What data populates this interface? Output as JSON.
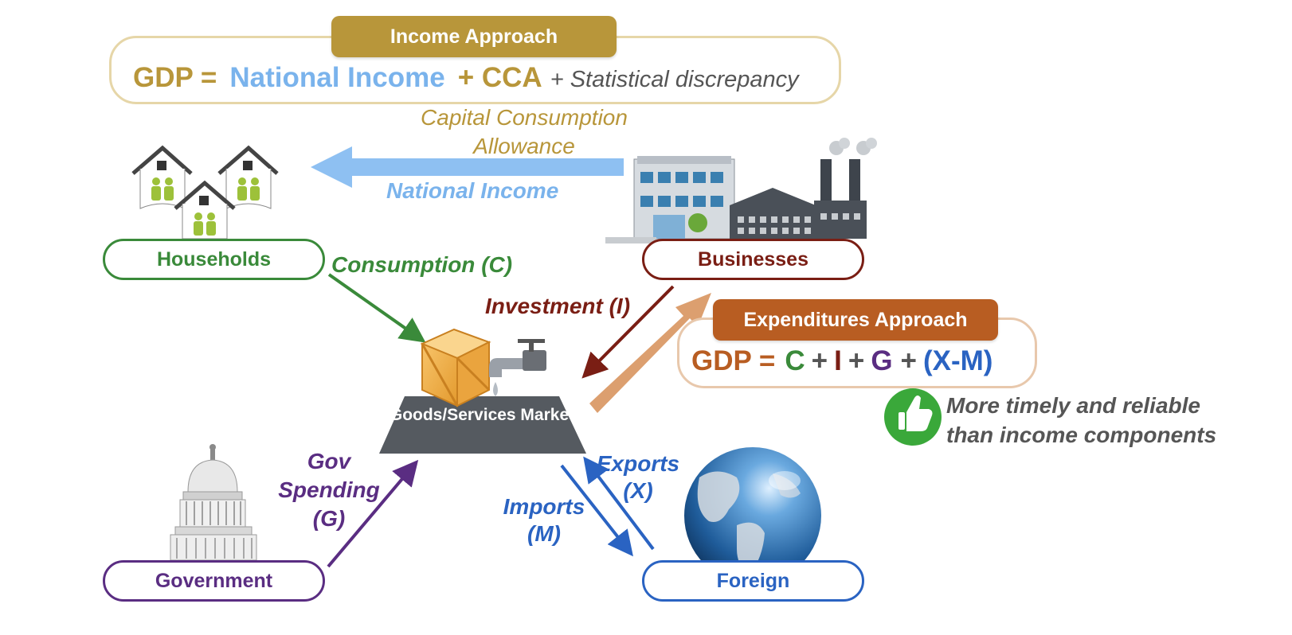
{
  "income_approach": {
    "title": "Income Approach",
    "gdp": "GDP =",
    "national_income": "National Income",
    "plus_cca": "+ CCA",
    "discrepancy": "+ Statistical discrepancy"
  },
  "cca_label": "Capital Consumption Allowance",
  "national_income_label": "National Income",
  "nodes": {
    "households": "Households",
    "businesses": "Businesses",
    "government": "Government",
    "foreign": "Foreign",
    "market": "Goods/Services Market"
  },
  "flows": {
    "consumption": "Consumption (C)",
    "investment": "Investment (I)",
    "gov_spending": "Gov Spending (G)",
    "exports": "Exports (X)",
    "imports": "Imports (M)"
  },
  "expenditures_approach": {
    "title": "Expenditures Approach",
    "gdp": "GDP =",
    "c": "C",
    "plus1": "+",
    "i": "I",
    "plus2": "+",
    "g": "G",
    "plus3": "+",
    "xm": "(X-M)"
  },
  "note": "More timely and reliable than income components",
  "colors": {
    "gold": "#b8963a",
    "light_blue": "#7ab3ec",
    "green": "#3a8a3a",
    "maroon": "#7a1e14",
    "purple": "#5a2d82",
    "blue": "#2a63c2",
    "orange": "#b85d22",
    "thumb_green": "#3aa83a"
  },
  "icons": [
    "house-icon",
    "factory-icon",
    "office-building-icon",
    "crate-icon",
    "faucet-icon",
    "capitol-icon",
    "globe-icon",
    "thumbs-up-icon"
  ]
}
